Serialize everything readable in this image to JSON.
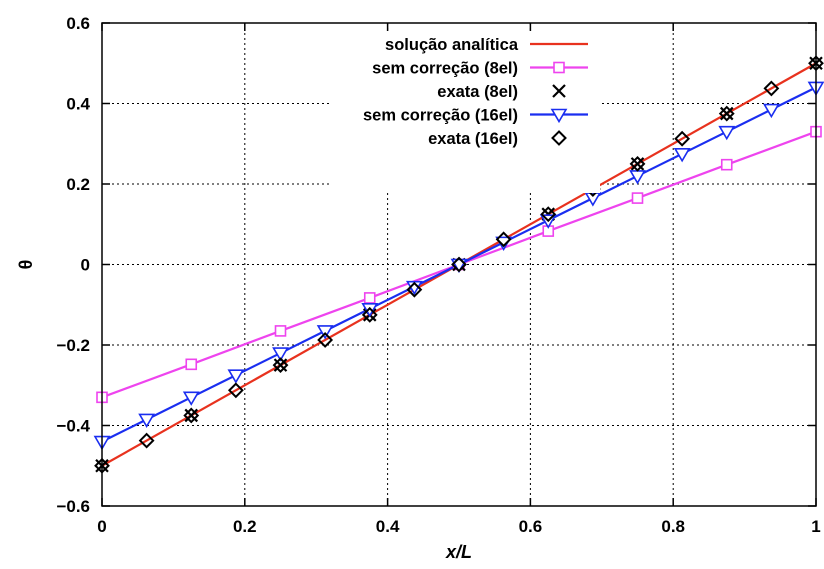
{
  "chart_data": {
    "type": "line",
    "xlabel": "x/L",
    "ylabel": "θ",
    "xlim": [
      0,
      1
    ],
    "ylim": [
      -0.6,
      0.6
    ],
    "xticks": [
      0,
      0.2,
      0.4,
      0.6,
      0.8,
      1
    ],
    "xtick_labels": [
      "0",
      "0.2",
      "0.4",
      "0.6",
      "0.8",
      "1"
    ],
    "yticks": [
      -0.6,
      -0.4,
      -0.2,
      0,
      0.2,
      0.4,
      0.6
    ],
    "ytick_labels": [
      "−0.6",
      "−0.4",
      "−0.2",
      "0",
      "0.2",
      "0.4",
      "0.6"
    ],
    "grid": true,
    "legend_position": "top-center",
    "series": [
      {
        "name": "solução analítica",
        "color": "#e8321e",
        "style": "line",
        "marker": "none",
        "x": [
          0,
          1
        ],
        "y": [
          -0.5,
          0.5
        ]
      },
      {
        "name": "sem correção (8el)",
        "color": "#ee44ee",
        "style": "linespoints",
        "marker": "square",
        "x": [
          0,
          0.125,
          0.25,
          0.375,
          0.5,
          0.625,
          0.75,
          0.875,
          1
        ],
        "y": [
          -0.33,
          -0.248,
          -0.165,
          -0.083,
          0,
          0.083,
          0.165,
          0.248,
          0.33
        ]
      },
      {
        "name": "exata (8el)",
        "color": "#000000",
        "style": "points",
        "marker": "x",
        "x": [
          0,
          0.125,
          0.25,
          0.375,
          0.5,
          0.625,
          0.75,
          0.875,
          1
        ],
        "y": [
          -0.5,
          -0.375,
          -0.25,
          -0.125,
          0,
          0.125,
          0.25,
          0.375,
          0.5
        ]
      },
      {
        "name": "sem correção (16el)",
        "color": "#1a2ef0",
        "style": "linespoints",
        "marker": "triangle-down",
        "x": [
          0,
          0.0625,
          0.125,
          0.1875,
          0.25,
          0.3125,
          0.375,
          0.4375,
          0.5,
          0.5625,
          0.625,
          0.6875,
          0.75,
          0.8125,
          0.875,
          0.9375,
          1
        ],
        "y": [
          -0.44,
          -0.385,
          -0.33,
          -0.275,
          -0.22,
          -0.165,
          -0.11,
          -0.055,
          0,
          0.055,
          0.11,
          0.165,
          0.22,
          0.275,
          0.33,
          0.385,
          0.44
        ]
      },
      {
        "name": "exata (16el)",
        "color": "#000000",
        "style": "points",
        "marker": "diamond",
        "x": [
          0,
          0.0625,
          0.125,
          0.1875,
          0.25,
          0.3125,
          0.375,
          0.4375,
          0.5,
          0.5625,
          0.625,
          0.6875,
          0.75,
          0.8125,
          0.875,
          0.9375,
          1
        ],
        "y": [
          -0.5,
          -0.4375,
          -0.375,
          -0.3125,
          -0.25,
          -0.1875,
          -0.125,
          -0.0625,
          0,
          0.0625,
          0.125,
          0.1875,
          0.25,
          0.3125,
          0.375,
          0.4375,
          0.5
        ]
      }
    ]
  }
}
